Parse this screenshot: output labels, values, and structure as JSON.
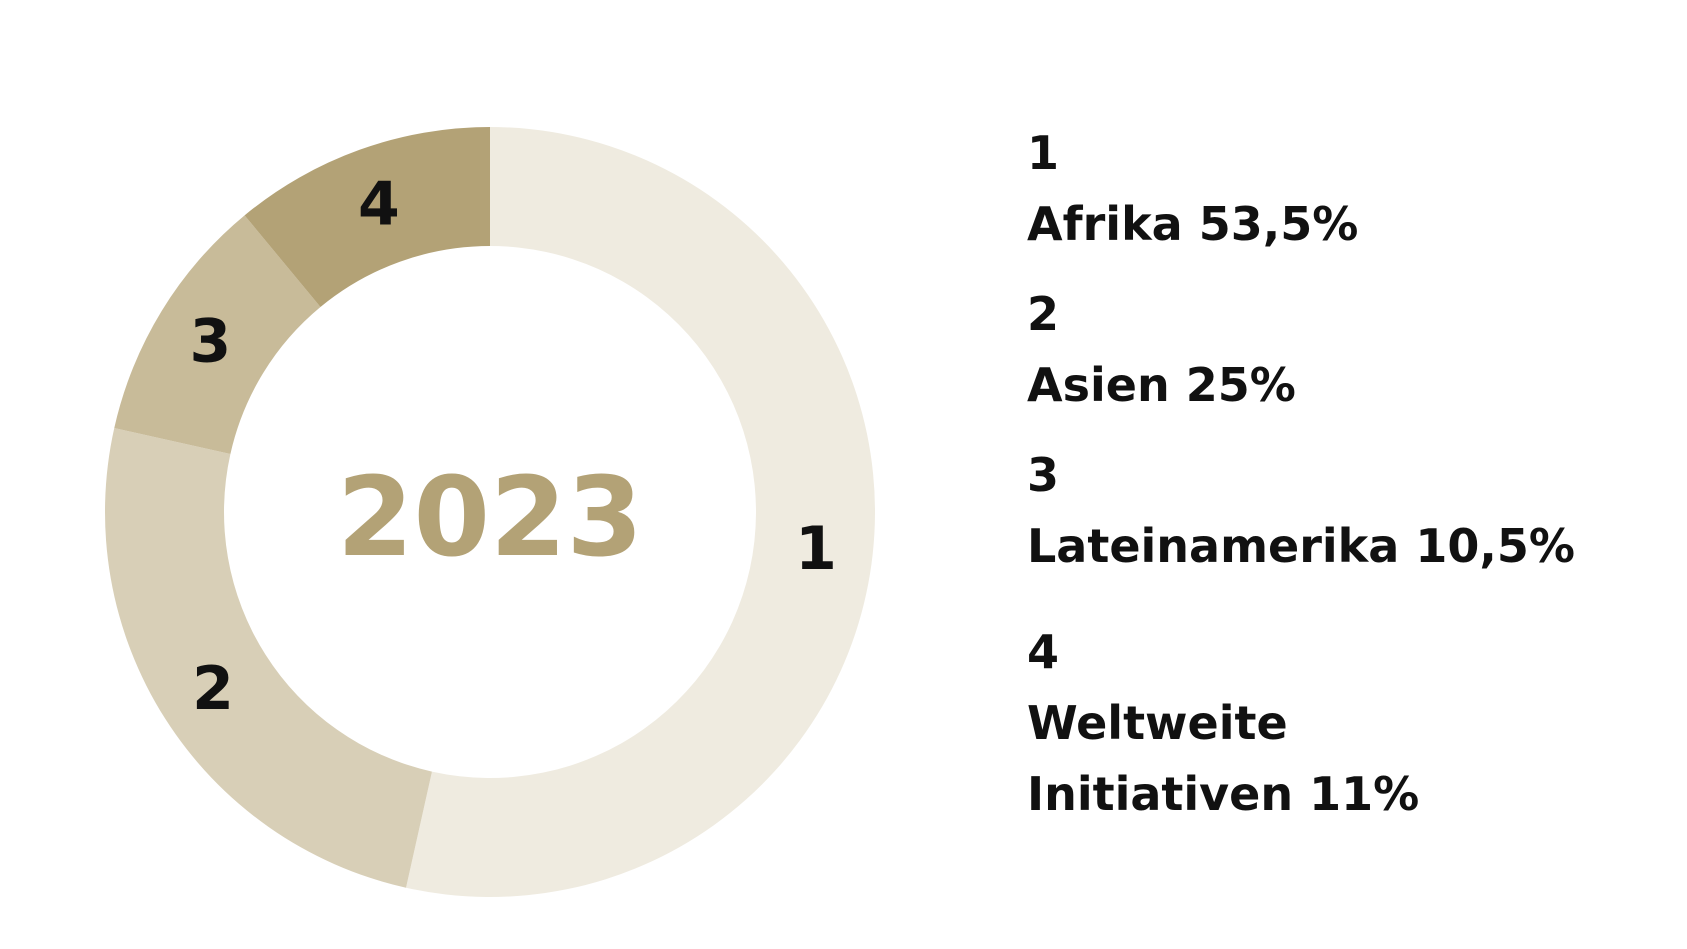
{
  "chart_data": {
    "type": "pie",
    "variant": "donut",
    "center_label": "2023",
    "slices": [
      {
        "id": "1",
        "label": "Afrika",
        "value": 53.5,
        "legend_text": "Afrika 53,5%",
        "color": "#efebe0"
      },
      {
        "id": "2",
        "label": "Asien",
        "value": 25,
        "legend_text": "Asien 25%",
        "color": "#d8cfb7"
      },
      {
        "id": "3",
        "label": "Lateinamerika",
        "value": 10.5,
        "legend_text": "Lateinamerika 10,5%",
        "color": "#c8bb99"
      },
      {
        "id": "4",
        "label": "Weltweite Initiativen",
        "value": 11,
        "legend_text": "Weltweite Initiativen 11%",
        "color": "#b3a276"
      }
    ],
    "start_angle": "12 o'clock",
    "direction": "clockwise",
    "legend_position": "right"
  },
  "colors": {
    "center_label": "#b3a276",
    "text": "#111111",
    "background": "#ffffff"
  }
}
